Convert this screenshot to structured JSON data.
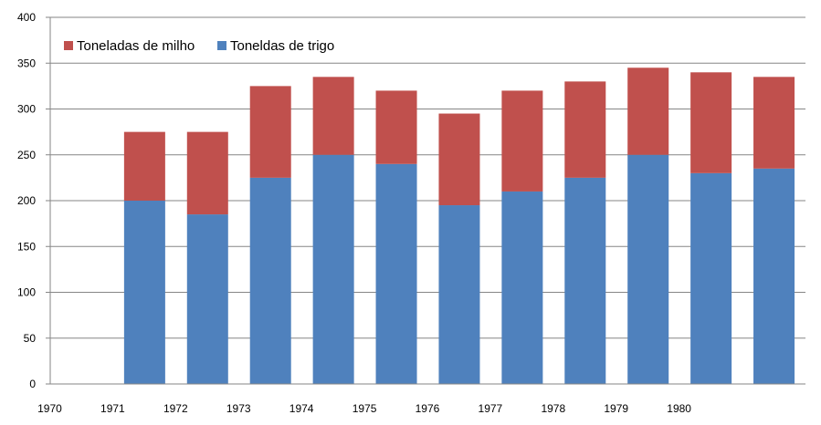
{
  "chart_data": {
    "type": "bar",
    "stacked": true,
    "categories": [
      "1970",
      "1971",
      "1972",
      "1973",
      "1974",
      "1975",
      "1976",
      "1977",
      "1978",
      "1979",
      "1980",
      ""
    ],
    "series": [
      {
        "name": "Toneldas de trigo",
        "color": "#4f81bd",
        "values": [
          null,
          200,
          185,
          225,
          250,
          240,
          195,
          210,
          225,
          250,
          230,
          235
        ]
      },
      {
        "name": "Toneladas de milho",
        "color": "#c0504d",
        "values": [
          null,
          75,
          90,
          100,
          85,
          80,
          100,
          110,
          105,
          95,
          110,
          100
        ]
      }
    ],
    "legend": {
      "placement": "top-left",
      "order": [
        "Toneladas de milho",
        "Toneldas de trigo"
      ]
    },
    "ylim": [
      0,
      400
    ],
    "yticks": [
      0,
      50,
      100,
      150,
      200,
      250,
      300,
      350,
      400
    ],
    "grid": true,
    "title": "",
    "xlabel": "",
    "ylabel": ""
  }
}
